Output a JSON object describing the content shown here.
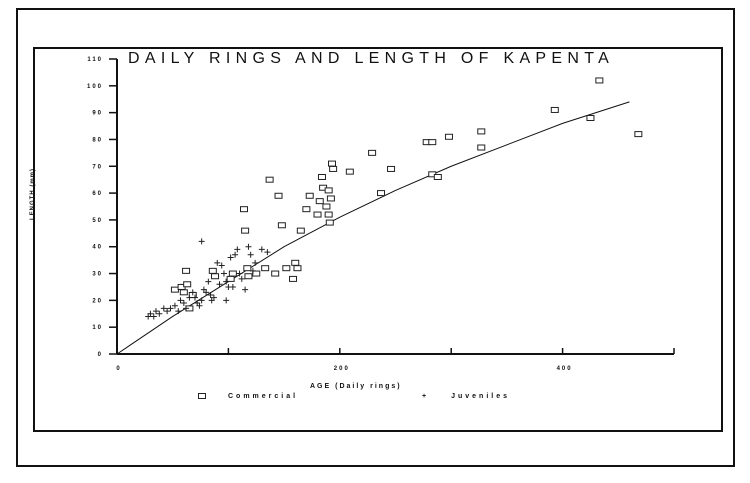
{
  "chart_data": {
    "type": "scatter",
    "title": "DAILY RINGS AND LENGTH OF KAPENTA",
    "xlabel": "AGE (Daily rings)",
    "ylabel": "LENGTH (mm)",
    "xlim": [
      0,
      500
    ],
    "ylim": [
      0,
      110
    ],
    "x_ticks": [
      0,
      100,
      200,
      300,
      400,
      500
    ],
    "x_tick_labels": [
      "0",
      "",
      "200",
      "",
      "400",
      ""
    ],
    "y_ticks": [
      0,
      10,
      20,
      30,
      40,
      50,
      60,
      70,
      80,
      90,
      100,
      110
    ],
    "y_tick_labels": [
      "0",
      "10",
      "20",
      "30",
      "40",
      "50",
      "60",
      "70",
      "80",
      "90",
      "100",
      "110"
    ],
    "grid": false,
    "legend_position": "bottom",
    "series": [
      {
        "name": "Commercial",
        "marker": "square",
        "points": [
          [
            52,
            24
          ],
          [
            58,
            25
          ],
          [
            60,
            23
          ],
          [
            62,
            31
          ],
          [
            63,
            26
          ],
          [
            65,
            17
          ],
          [
            68,
            22
          ],
          [
            86,
            31
          ],
          [
            88,
            29
          ],
          [
            102,
            28
          ],
          [
            104,
            30
          ],
          [
            114,
            54
          ],
          [
            115,
            46
          ],
          [
            117,
            32
          ],
          [
            118,
            29
          ],
          [
            125,
            30
          ],
          [
            133,
            32
          ],
          [
            137,
            65
          ],
          [
            142,
            30
          ],
          [
            145,
            59
          ],
          [
            148,
            48
          ],
          [
            152,
            32
          ],
          [
            158,
            28
          ],
          [
            160,
            34
          ],
          [
            162,
            32
          ],
          [
            165,
            46
          ],
          [
            170,
            54
          ],
          [
            173,
            59
          ],
          [
            180,
            52
          ],
          [
            182,
            57
          ],
          [
            184,
            66
          ],
          [
            185,
            62
          ],
          [
            188,
            55
          ],
          [
            190,
            52
          ],
          [
            190,
            61
          ],
          [
            191,
            49
          ],
          [
            192,
            58
          ],
          [
            193,
            71
          ],
          [
            194,
            69
          ],
          [
            209,
            68
          ],
          [
            229,
            75
          ],
          [
            237,
            60
          ],
          [
            246,
            69
          ],
          [
            278,
            79
          ],
          [
            283,
            79
          ],
          [
            283,
            67
          ],
          [
            288,
            66
          ],
          [
            298,
            81
          ],
          [
            327,
            83
          ],
          [
            327,
            77
          ],
          [
            393,
            91
          ],
          [
            425,
            88
          ],
          [
            433,
            102
          ],
          [
            468,
            82
          ]
        ]
      },
      {
        "name": "Juveniles",
        "marker": "plus",
        "points": [
          [
            28,
            14
          ],
          [
            30,
            15
          ],
          [
            33,
            14
          ],
          [
            35,
            16
          ],
          [
            38,
            15
          ],
          [
            42,
            17
          ],
          [
            45,
            16
          ],
          [
            48,
            17
          ],
          [
            52,
            18
          ],
          [
            55,
            16
          ],
          [
            57,
            20
          ],
          [
            60,
            19
          ],
          [
            62,
            17
          ],
          [
            65,
            21
          ],
          [
            68,
            23
          ],
          [
            70,
            21
          ],
          [
            72,
            19
          ],
          [
            74,
            18
          ],
          [
            76,
            20
          ],
          [
            78,
            24
          ],
          [
            80,
            23
          ],
          [
            82,
            27
          ],
          [
            84,
            22
          ],
          [
            85,
            20
          ],
          [
            87,
            21
          ],
          [
            90,
            34
          ],
          [
            92,
            26
          ],
          [
            94,
            33
          ],
          [
            96,
            30
          ],
          [
            98,
            27
          ],
          [
            100,
            25
          ],
          [
            102,
            36
          ],
          [
            104,
            25
          ],
          [
            106,
            37
          ],
          [
            108,
            39
          ],
          [
            110,
            30
          ],
          [
            112,
            28
          ],
          [
            115,
            24
          ],
          [
            118,
            40
          ],
          [
            120,
            37
          ],
          [
            122,
            31
          ],
          [
            124,
            34
          ],
          [
            130,
            39
          ],
          [
            135,
            38
          ],
          [
            76,
            42
          ],
          [
            98,
            20
          ]
        ]
      }
    ],
    "fit_curve": {
      "name": "Fitted growth curve",
      "points": [
        [
          0,
          0
        ],
        [
          50,
          14
        ],
        [
          100,
          27
        ],
        [
          150,
          40
        ],
        [
          200,
          51
        ],
        [
          250,
          61
        ],
        [
          300,
          70
        ],
        [
          350,
          78
        ],
        [
          400,
          86
        ],
        [
          460,
          94
        ]
      ]
    }
  },
  "legend": {
    "items": [
      {
        "label": "Commercial",
        "symbol": "square"
      },
      {
        "label": "Juveniles",
        "symbol": "+"
      }
    ]
  },
  "colors": {
    "ink": "#111111",
    "background": "#ffffff"
  }
}
